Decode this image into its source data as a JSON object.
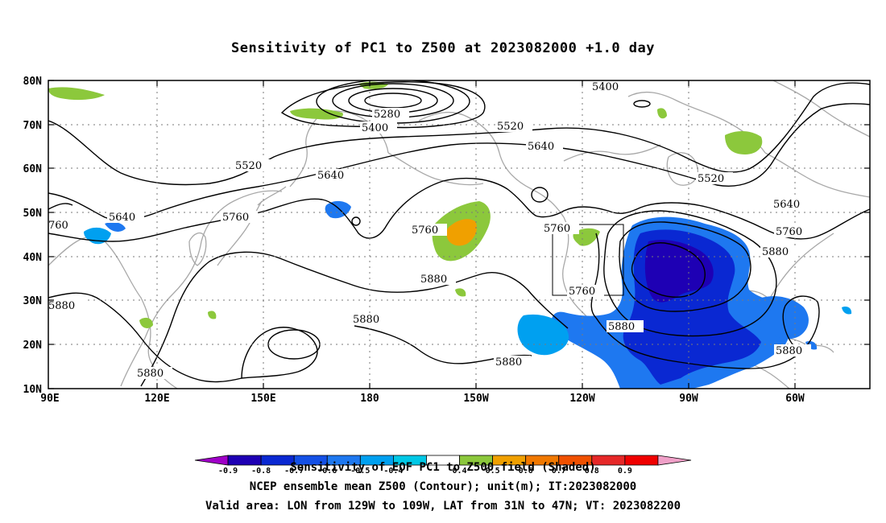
{
  "title": "Sensitivity of PC1 to Z500 at 2023082000 +1.0 day",
  "map": {
    "lat_labels": [
      "80N",
      "70N",
      "60N",
      "50N",
      "40N",
      "30N",
      "20N",
      "10N"
    ],
    "lon_labels": [
      "90E",
      "120E",
      "150E",
      "180",
      "150W",
      "120W",
      "90W",
      "60W"
    ],
    "contour_labels": [
      {
        "text": "5400"
      },
      {
        "text": "5280"
      },
      {
        "text": "5400"
      },
      {
        "text": "5520"
      },
      {
        "text": "5640"
      },
      {
        "text": "5520"
      },
      {
        "text": "5640"
      },
      {
        "text": "5520"
      },
      {
        "text": "5640"
      },
      {
        "text": "5760"
      },
      {
        "text": "5640"
      },
      {
        "text": "5760"
      },
      {
        "text": "5760"
      },
      {
        "text": "5760"
      },
      {
        "text": "5880"
      },
      {
        "text": "5880"
      },
      {
        "text": "5760"
      },
      {
        "text": "5880"
      },
      {
        "text": "5880"
      },
      {
        "text": "5880"
      },
      {
        "text": "5880"
      },
      {
        "text": "5880"
      },
      {
        "text": "760"
      }
    ],
    "valid_box": {
      "lon_from": "129W",
      "lon_to": "109W",
      "lat_from": "31N",
      "lat_to": "47N"
    }
  },
  "colorbar": {
    "tick_labels": [
      "-0.9",
      "-0.8",
      "-0.7",
      "-0.6",
      "-0.5",
      "-0.4",
      "0.4",
      "0.5",
      "0.6",
      "0.7",
      "0.8",
      "0.9"
    ],
    "colors": [
      "#a000c8",
      "#1e00b4",
      "#0a28d2",
      "#1450e6",
      "#1e78f0",
      "#00a0f0",
      "#00c8e6",
      "#ffffff",
      "#8cc83c",
      "#f0a000",
      "#f07800",
      "#f05000",
      "#e62828",
      "#f00000",
      "#f0a0c8"
    ]
  },
  "footer": {
    "line1": "Sensitivity of EOF PC1 to Z500 field (Shaded)",
    "line2": "NCEP ensemble mean Z500 (Contour); unit(m); IT:2023082000",
    "line3": "Valid area: LON from 129W to 109W, LAT from 31N to 47N; VT: 2023082200"
  }
}
